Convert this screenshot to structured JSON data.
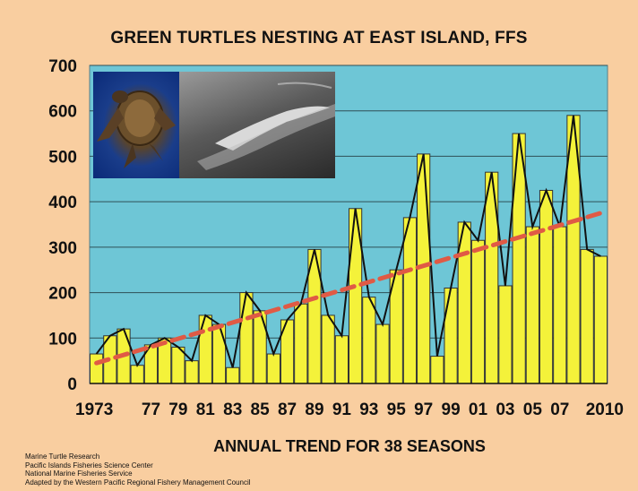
{
  "chart_data": {
    "type": "bar",
    "title": "GREEN TURTLES NESTING AT EAST ISLAND, FFS",
    "xlabel": "ANNUAL TREND FOR 38 SEASONS",
    "ylabel": "",
    "ylim": [
      0,
      700
    ],
    "yticks": [
      0,
      100,
      200,
      300,
      400,
      500,
      600,
      700
    ],
    "grid": true,
    "overlay": "black line connecting annual values",
    "trendline": {
      "style": "dashed",
      "color": "#e05a45",
      "x": [
        1973,
        2010
      ],
      "y": [
        45,
        375
      ]
    },
    "years": [
      1973,
      1974,
      1975,
      1976,
      1977,
      1978,
      1979,
      1980,
      1981,
      1982,
      1983,
      1984,
      1985,
      1986,
      1987,
      1988,
      1989,
      1990,
      1991,
      1992,
      1993,
      1994,
      1995,
      1996,
      1997,
      1998,
      1999,
      2000,
      2001,
      2002,
      2003,
      2004,
      2005,
      2006,
      2007,
      2008,
      2009,
      2010
    ],
    "values": [
      65,
      105,
      120,
      40,
      85,
      100,
      80,
      50,
      150,
      130,
      35,
      200,
      160,
      65,
      140,
      175,
      295,
      150,
      105,
      385,
      190,
      130,
      250,
      365,
      505,
      60,
      210,
      355,
      315,
      465,
      215,
      550,
      345,
      425,
      345,
      590,
      295,
      280
    ],
    "tick_labels": [
      "1973",
      "77",
      "79",
      "81",
      "83",
      "85",
      "87",
      "89",
      "91",
      "93",
      "95",
      "97",
      "99",
      "01",
      "03",
      "05",
      "07",
      "2010"
    ],
    "tick_years": [
      1973,
      1977,
      1979,
      1981,
      1983,
      1985,
      1987,
      1989,
      1991,
      1993,
      1995,
      1997,
      1999,
      2001,
      2003,
      2005,
      2007,
      2010
    ]
  },
  "colors": {
    "plot_bg": "#6ec6d6",
    "bar_fill": "#f4f23a",
    "page_bg": "#f9cea0",
    "line": "#111111",
    "trend": "#e05a45"
  },
  "images": {
    "left": "green-sea-turtle-photo",
    "right": "aerial-east-island-photo"
  },
  "credits": [
    "Marine Turtle Research",
    "Pacific Islands Fisheries Science Center",
    "National Marine Fisheries Service",
    "Adapted by the Western Pacific Regional Fishery Management Council"
  ]
}
